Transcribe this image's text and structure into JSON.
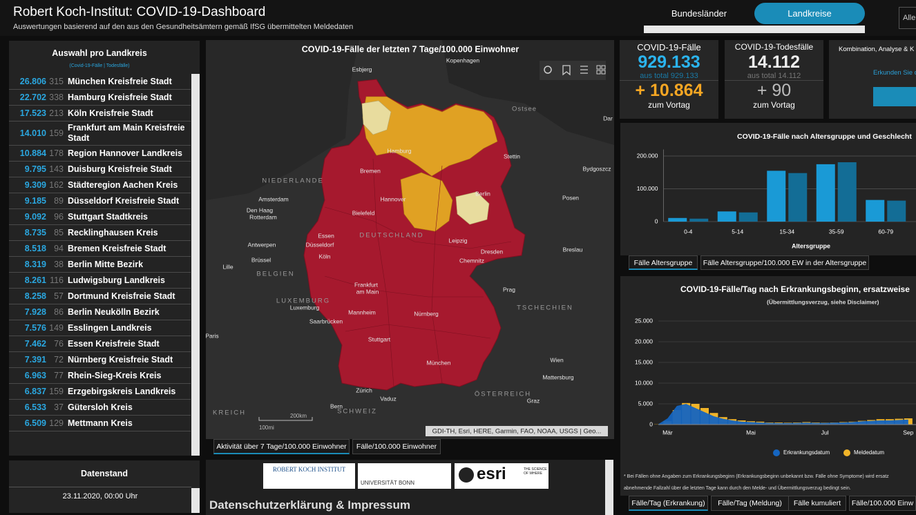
{
  "header": {
    "title": "Robert Koch-Institut: COVID-19-Dashboard",
    "subtitle": "Auswertungen basierend auf den aus den Gesundheitsämtern gemäß IfSG übermittelten Meldedaten",
    "tabs": [
      "Bundesländer",
      "Landkreise"
    ],
    "search": "Alle"
  },
  "district_list": {
    "title": "Auswahl pro Landkreis",
    "subtitle": "(Covid-19-Fälle | Todesfälle)",
    "rows": [
      [
        "26.806",
        "315",
        "München Kreisfreie Stadt"
      ],
      [
        "22.702",
        "338",
        "Hamburg Kreisfreie Stadt"
      ],
      [
        "17.523",
        "213",
        "Köln Kreisfreie Stadt"
      ],
      [
        "14.010",
        "159",
        "Frankfurt am Main Kreisfreie Stadt"
      ],
      [
        "10.884",
        "178",
        "Region Hannover Landkreis"
      ],
      [
        "9.795",
        "143",
        "Duisburg Kreisfreie Stadt"
      ],
      [
        "9.309",
        "162",
        "Städteregion Aachen Kreis"
      ],
      [
        "9.185",
        "89",
        "Düsseldorf Kreisfreie Stadt"
      ],
      [
        "9.092",
        "96",
        "Stuttgart Stadtkreis"
      ],
      [
        "8.735",
        "85",
        "Recklinghausen Kreis"
      ],
      [
        "8.518",
        "94",
        "Bremen Kreisfreie Stadt"
      ],
      [
        "8.319",
        "38",
        "Berlin Mitte Bezirk"
      ],
      [
        "8.261",
        "116",
        "Ludwigsburg Landkreis"
      ],
      [
        "8.258",
        "57",
        "Dortmund Kreisfreie Stadt"
      ],
      [
        "7.928",
        "86",
        "Berlin Neukölln Bezirk"
      ],
      [
        "7.576",
        "149",
        "Esslingen Landkreis"
      ],
      [
        "7.462",
        "76",
        "Essen Kreisfreie Stadt"
      ],
      [
        "7.391",
        "72",
        "Nürnberg Kreisfreie Stadt"
      ],
      [
        "6.963",
        "77",
        "Rhein-Sieg-Kreis Kreis"
      ],
      [
        "6.837",
        "159",
        "Erzgebirgskreis Landkreis"
      ],
      [
        "6.533",
        "37",
        "Gütersloh Kreis"
      ],
      [
        "6.509",
        "129",
        "Mettmann Kreis"
      ]
    ]
  },
  "data_status": {
    "title": "Datenstand",
    "value": "23.11.2020, 00:00 Uhr"
  },
  "map": {
    "title": "COVID-19-Fälle der letzten 7 Tage/100.000 Einwohner",
    "labels": [
      "Esbjerg",
      "Kopenhagen",
      "Ostsee",
      "Hamburg",
      "Stettin",
      "Bremen",
      "Bydgoszcz",
      "NIEDERLANDE",
      "Amsterdam",
      "Berlin",
      "Hannover",
      "Posen",
      "Den Haag",
      "Rotterdam",
      "Bielefeld",
      "DEUTSCHLAND",
      "Essen",
      "Düsseldorf",
      "Leipzig",
      "Antwerpen",
      "Köln",
      "Dresden",
      "Brüssel",
      "Chemnitz",
      "Breslau",
      "BELGIEN",
      "Lille",
      "Frankfurt",
      "am Main",
      "Prag",
      "LUXEMBURG",
      "Luxemburg",
      "TSCHECHIEN",
      "Mannheim",
      "Nürnberg",
      "Saarbrücken",
      "Paris",
      "Stuttgart",
      "Wien",
      "München",
      "Mattersburg",
      "Zürich",
      "Vaduz",
      "ÖSTERREICH",
      "Graz",
      "Bern",
      "SCHWEIZ",
      "KREICH",
      "Dar"
    ],
    "scale": [
      "200km",
      "100mi"
    ],
    "attribution": "GDI-TH, Esri, HERE, Garmin, FAO, NOAA, USGS | Geo...",
    "tabs": [
      "Aktivität über 7 Tage/100.000 Einwohner",
      "Fälle/100.000 Einwohner"
    ]
  },
  "footer": {
    "logos": [
      "ROBERT KOCH INSTITUT",
      "UNIVERSITÄT BONN",
      "esri",
      "THE SCIENCE OF WHERE"
    ],
    "link": "Datenschutzerklärung & Impressum"
  },
  "kpis": [
    {
      "title": "COVID-19-Fälle",
      "value": "929.133",
      "total": "aus total 929.133",
      "change": "+ 10.864",
      "change_label": "zum Vortag"
    },
    {
      "title": "COVID-19-Todesfälle",
      "value": "14.112",
      "total": "aus total 14.112",
      "change": "+ 90",
      "change_label": "zum Vortag"
    }
  ],
  "info_card": {
    "title": "Kombination, Analyse & K",
    "link": "Erkunden Sie d"
  },
  "age_chart": {
    "type": "bar",
    "title": "COVID-19-Fälle nach Altersgruppe und Geschlecht",
    "x_label": "Altersgruppe",
    "categories": [
      "0-4",
      "5-14",
      "15-34",
      "35-59",
      "60-79"
    ],
    "series": [
      {
        "color": "#1a9ad6",
        "values": [
          11000,
          31000,
          155000,
          175000,
          66000
        ]
      },
      {
        "color": "#136d96",
        "values": [
          9000,
          28000,
          148000,
          181000,
          64000
        ]
      }
    ],
    "ylim": [
      0,
      220000
    ],
    "yticks": [
      0,
      {
        "value": 100000,
        "label": "100.000"
      },
      {
        "value": 200000,
        "label": "200.000"
      }
    ],
    "grid": true,
    "tabs": [
      "Fälle Altersgruppe",
      "Fälle Altersgruppe/100.000 EW in der Altersgruppe"
    ]
  },
  "daily_chart": {
    "type": "area",
    "title": "COVID-19-Fälle/Tag nach Erkrankungsbeginn, ersatzweise",
    "subtitle": "(Übermittlungsverzug, siehe Disclaimer)",
    "categories": [
      null,
      "Mär",
      null,
      null,
      null,
      null,
      null,
      null,
      null,
      null,
      "Mai",
      null,
      null,
      null,
      null,
      null,
      null,
      null,
      "Jul",
      null,
      null,
      null,
      null,
      null,
      null,
      null,
      null,
      "Sep"
    ],
    "series": [
      {
        "name": "Erkrankungsdatum",
        "color": "#1565c0",
        "values": [
          100,
          1500,
          4500,
          5000,
          4000,
          3000,
          2000,
          1400,
          1000,
          700,
          600,
          500,
          400,
          350,
          350,
          400,
          450,
          400,
          400,
          450,
          500,
          600,
          800,
          900,
          1000,
          1000,
          1100,
          1200
        ]
      },
      {
        "name": "Meldedatum",
        "color": "#f0b429",
        "values": [
          50,
          800,
          3500,
          5200,
          5000,
          4000,
          2800,
          1800,
          1300,
          1000,
          800,
          700,
          500,
          500,
          450,
          500,
          600,
          500,
          450,
          500,
          600,
          700,
          900,
          1100,
          1300,
          1300,
          1400,
          1500
        ]
      }
    ],
    "ylim": [
      0,
      25000
    ],
    "yticks": [
      0,
      {
        "value": 5000,
        "label": "5.000"
      },
      {
        "value": 10000,
        "label": "10.000"
      },
      {
        "value": 15000,
        "label": "15.000"
      },
      {
        "value": 20000,
        "label": "20.000"
      },
      {
        "value": 25000,
        "label": "25.000"
      }
    ],
    "grid": true,
    "notes": [
      "* Bei Fällen ohne Angaben zum Erkrankungsbeginn (Erkrankungsbeginn unbekannt bzw. Fälle ohne Symptome) wird ersatz",
      "abnehmende Fallzahl über die letzten Tage kann durch den Melde- und Übermittlungsverzug bedingt sein."
    ],
    "tabs": [
      "Fälle/Tag (Erkrankung)",
      "Fälle/Tag (Meldung)",
      "Fälle kumuliert",
      "Fälle/100.000 Einw"
    ]
  }
}
